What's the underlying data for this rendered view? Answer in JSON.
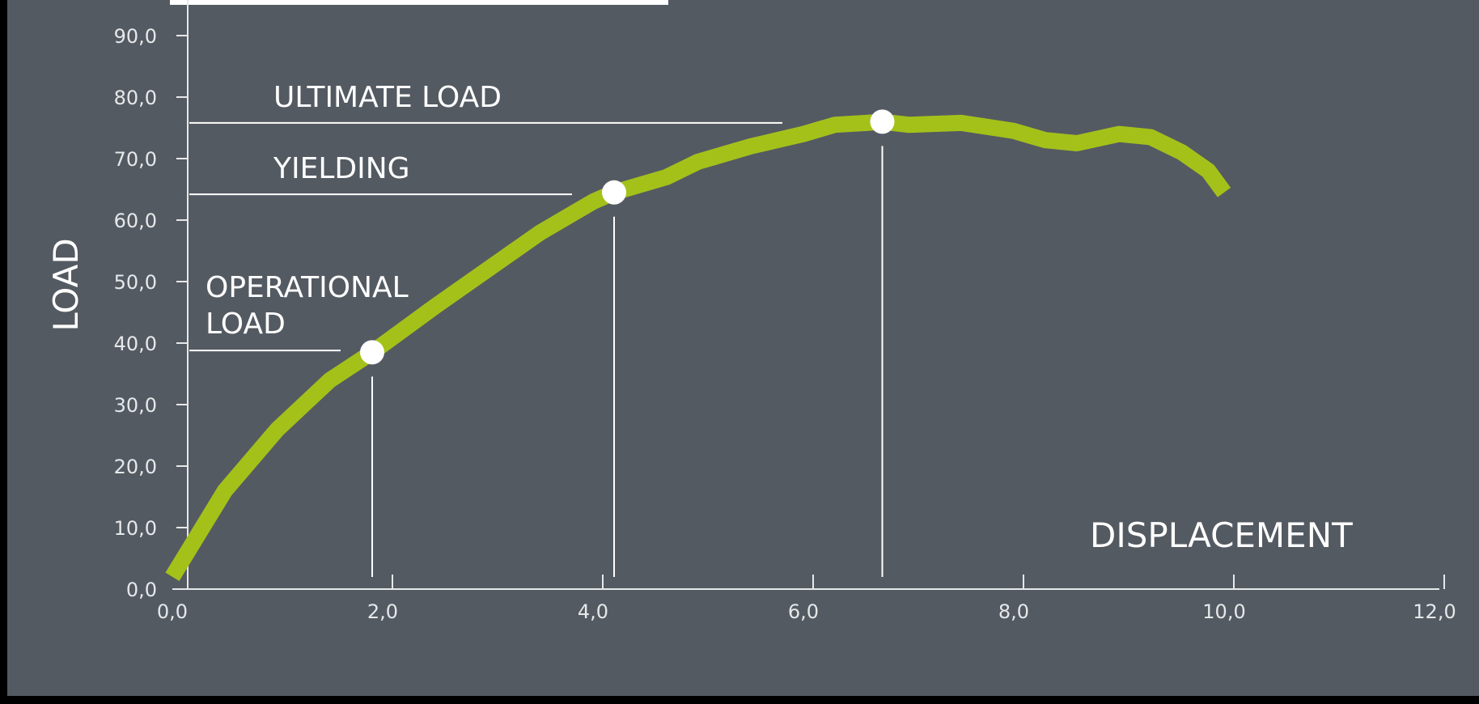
{
  "chart_data": {
    "type": "line",
    "title": "",
    "xlabel": "DISPLACEMENT",
    "ylabel": "LOAD",
    "xlim": [
      0,
      12
    ],
    "ylim": [
      0,
      90
    ],
    "grid": false,
    "x_ticks": [
      "0,0",
      "2,0",
      "4,0",
      "6,0",
      "8,0",
      "10,0",
      "12,0"
    ],
    "y_ticks": [
      "0,0",
      "10,0",
      "20,0",
      "30,0",
      "40,0",
      "50,0",
      "60,0",
      "70,0",
      "80,0",
      "90,0"
    ],
    "series": [
      {
        "color": "#a4c11a",
        "x": [
          0.0,
          0.5,
          1.0,
          1.5,
          1.9,
          2.5,
          3.0,
          3.5,
          4.0,
          4.2,
          4.7,
          5.0,
          5.5,
          6.0,
          6.3,
          6.6,
          6.75,
          7.0,
          7.5,
          8.0,
          8.3,
          8.6,
          9.0,
          9.3,
          9.6,
          9.85,
          10.0
        ],
        "y": [
          2,
          16,
          26,
          34,
          38.5,
          46,
          52,
          58,
          63,
          64.5,
          67,
          69.5,
          72,
          74,
          75.5,
          75.8,
          76,
          75.5,
          75.8,
          74.5,
          73,
          72.5,
          74,
          73.5,
          71,
          68,
          64.5
        ]
      }
    ],
    "highlight_points": [
      {
        "x": 1.9,
        "y": 38.5
      },
      {
        "x": 4.2,
        "y": 64.5
      },
      {
        "x": 6.75,
        "y": 76
      }
    ],
    "annotations": [
      {
        "label": "ULTIMATE LOAD",
        "y": 75.8,
        "x_end": 5.8
      },
      {
        "label": "YIELDING",
        "y": 64.2,
        "x_end": 3.8
      },
      {
        "label": "OPERATIONAL\nLOAD",
        "y": 38.8,
        "x_end": 1.6
      }
    ]
  }
}
